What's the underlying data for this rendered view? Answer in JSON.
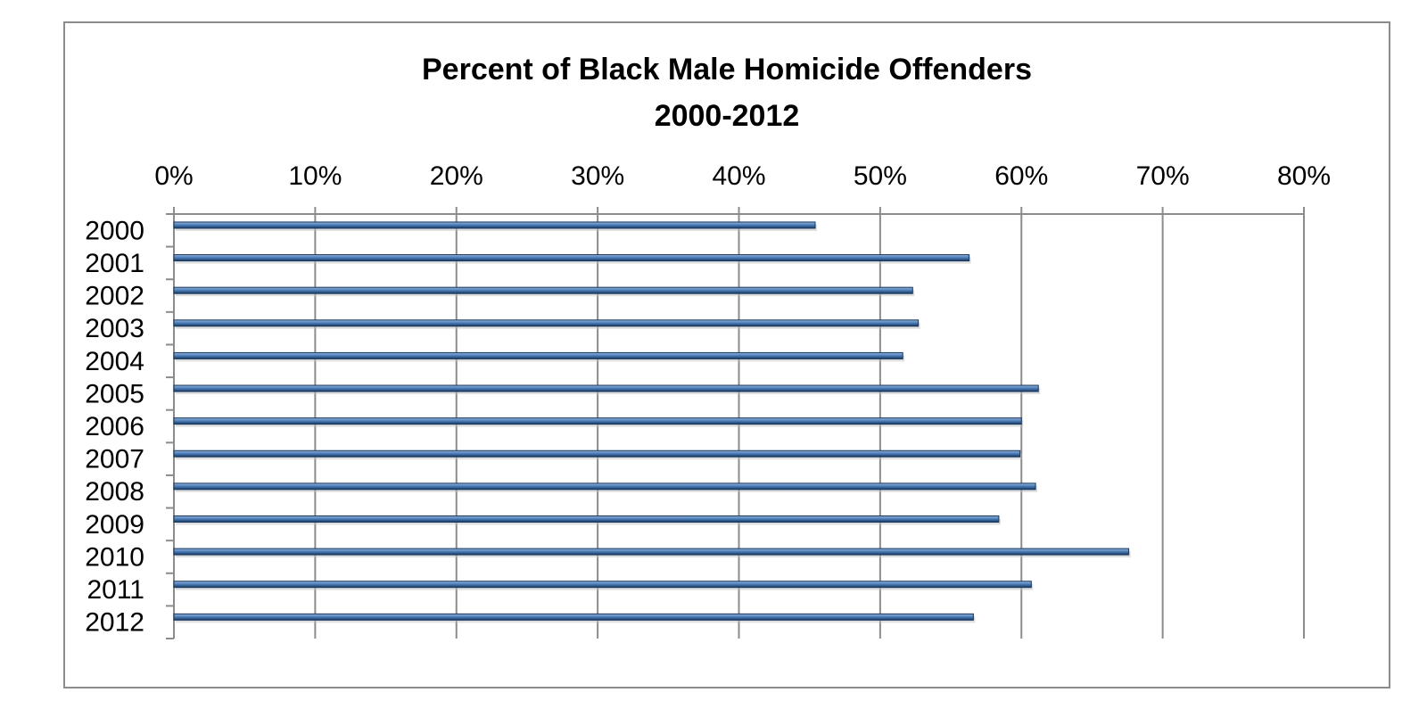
{
  "chart_data": {
    "type": "bar",
    "orientation": "horizontal",
    "title": [
      "Percent of Black Male Homicide Offenders",
      "2000-2012"
    ],
    "categories": [
      "2000",
      "2001",
      "2002",
      "2003",
      "2004",
      "2005",
      "2006",
      "2007",
      "2008",
      "2009",
      "2010",
      "2011",
      "2012"
    ],
    "values": [
      45.4,
      56.3,
      52.3,
      52.7,
      51.6,
      61.2,
      60.0,
      59.9,
      61.0,
      58.4,
      67.6,
      60.7,
      56.6
    ],
    "value_unit": "%",
    "xlim": [
      0,
      80
    ],
    "xticks": [
      "0%",
      "10%",
      "20%",
      "30%",
      "40%",
      "50%",
      "60%",
      "70%",
      "80%"
    ],
    "xaxis_position": "top",
    "grid": true,
    "legend": "none",
    "colors": {
      "bar": "#4f81bd",
      "bar_dark": "#17375e",
      "bar_light": "#95b3d7",
      "grid": "#8c8c8c"
    }
  }
}
